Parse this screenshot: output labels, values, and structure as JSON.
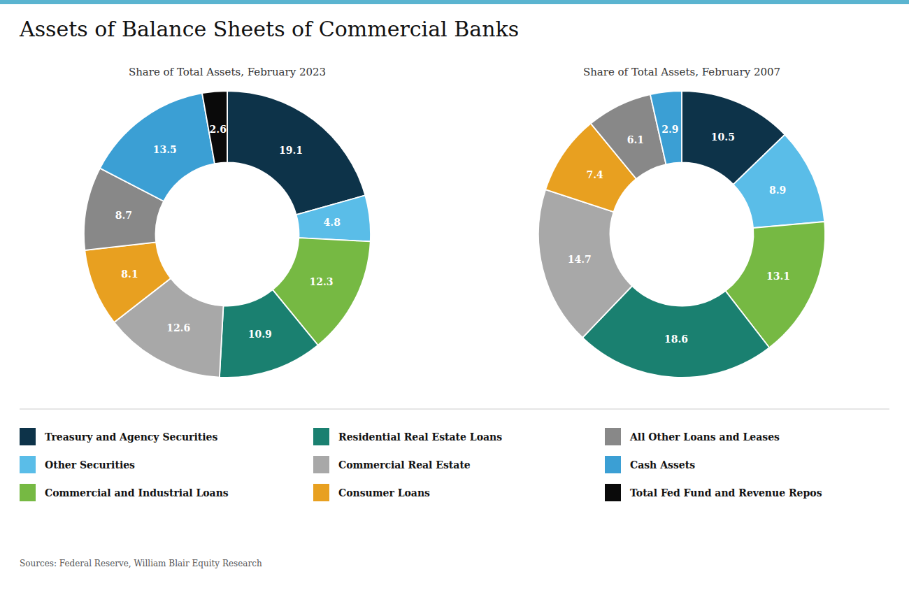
{
  "chart_data": [
    {
      "type": "donut",
      "title": "Assets of Balance Sheets of Commercial Banks",
      "subtitle": "Share of Total Assets, February 2023",
      "categories": [
        "Treasury and Agency Securities",
        "Other Securities",
        "Commercial and Industrial Loans",
        "Residential Real Estate Loans",
        "Commercial Real Estate",
        "Consumer Loans",
        "All Other Loans and Leases",
        "Cash Assets",
        "Total Fed Fund and Revenue Repos"
      ],
      "values": [
        19.1,
        4.8,
        12.3,
        10.9,
        12.6,
        8.1,
        8.7,
        13.5,
        2.6
      ],
      "colors": [
        "#0d3349",
        "#5abde8",
        "#76b943",
        "#1a8070",
        "#a8a8a8",
        "#e8a020",
        "#888888",
        "#3b9fd4",
        "#0a0a0a"
      ],
      "data_labels": true,
      "legend": "bottom",
      "annotations": [
        "Sources: Federal Reserve, William Blair Equity Research"
      ]
    },
    {
      "type": "donut",
      "subtitle": "Share of Total Assets, February 2007",
      "categories": [
        "Treasury and Agency Securities",
        "Other Securities",
        "Commercial and Industrial Loans",
        "Residential Real Estate Loans",
        "Commercial Real Estate",
        "Consumer Loans",
        "All Other Loans and Leases",
        "Cash Assets"
      ],
      "values": [
        10.5,
        8.9,
        13.1,
        18.6,
        14.7,
        7.4,
        6.1,
        2.9
      ],
      "colors": [
        "#0d3349",
        "#5abde8",
        "#76b943",
        "#1a8070",
        "#a8a8a8",
        "#e8a020",
        "#888888",
        "#3b9fd4"
      ],
      "data_labels": true
    }
  ]
}
